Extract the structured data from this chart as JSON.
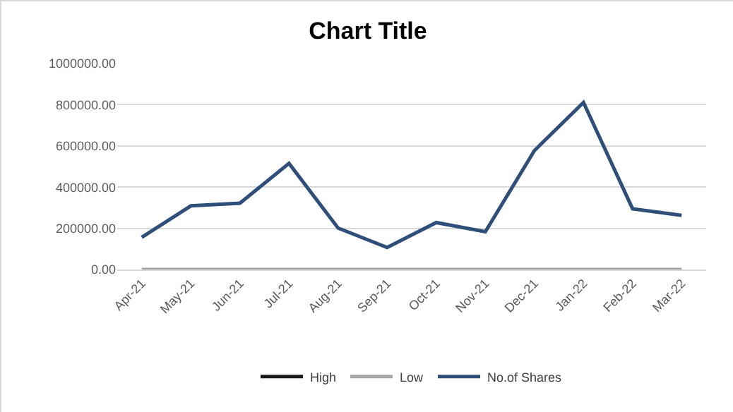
{
  "chart_data": {
    "type": "line",
    "title": "Chart Title",
    "categories": [
      "Apr-21",
      "May-21",
      "Jun-21",
      "Jul-21",
      "Aug-21",
      "Sep-21",
      "Oct-21",
      "Nov-21",
      "Dec-21",
      "Jan-22",
      "Feb-22",
      "Mar-22"
    ],
    "series": [
      {
        "name": "High",
        "color": "#1a1a1a",
        "values": [
          null,
          null,
          null,
          null,
          null,
          null,
          null,
          null,
          null,
          null,
          null,
          null
        ]
      },
      {
        "name": "Low",
        "color": "#a6a6a6",
        "values": [
          0,
          0,
          0,
          0,
          0,
          0,
          0,
          0,
          0,
          0,
          0,
          0
        ]
      },
      {
        "name": "No.of Shares",
        "color": "#2f4e7a",
        "values": [
          156000,
          309000,
          322000,
          515000,
          201000,
          107000,
          228000,
          183000,
          577000,
          811000,
          295000,
          263000
        ]
      }
    ],
    "ylim": [
      0,
      1000000
    ],
    "yticks": [
      {
        "value": 0,
        "label": "0.00"
      },
      {
        "value": 200000,
        "label": "200000.00"
      },
      {
        "value": 400000,
        "label": "400000.00"
      },
      {
        "value": 600000,
        "label": "600000.00"
      },
      {
        "value": 800000,
        "label": "800000.00"
      },
      {
        "value": 1000000,
        "label": "1000000.00"
      }
    ],
    "grid": "y",
    "legend": "bottom"
  }
}
